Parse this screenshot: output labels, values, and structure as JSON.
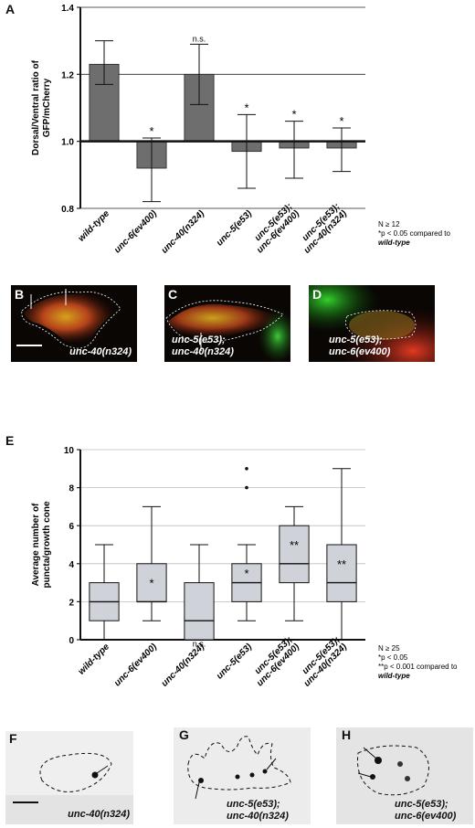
{
  "panels": {
    "a": "A",
    "b": "B",
    "c": "C",
    "d": "D",
    "e": "E",
    "f": "F",
    "g": "G",
    "h": "H"
  },
  "chart_data": [
    {
      "type": "bar",
      "panel": "A",
      "categories": [
        "wild-type",
        "unc-6(ev400)",
        "unc-40(n324)",
        "unc-5(e53)",
        "unc-5(e53);\nunc-6(ev400)",
        "unc-5(e53);\nunc-40(n324)"
      ],
      "values": [
        1.23,
        0.92,
        1.2,
        0.97,
        0.98,
        0.98
      ],
      "err_low": [
        1.17,
        0.82,
        1.11,
        0.86,
        0.89,
        0.91
      ],
      "err_high": [
        1.3,
        1.01,
        1.29,
        1.08,
        1.06,
        1.04
      ],
      "significance": [
        "",
        "*",
        "n.s.",
        "*",
        "*",
        "*"
      ],
      "ylabel": "Dorsal/Ventral ratio of\nGFP/mCherry",
      "xlabel": "",
      "ylim": [
        0.8,
        1.4
      ],
      "yticks": [
        "0.8",
        "1.0",
        "1.2",
        "1.4"
      ],
      "baseline": 1.0,
      "grid": true,
      "bar_color": "#6e6e6e",
      "notes": [
        "N ≥ 12",
        "*p < 0.05 compared to",
        "wild-type"
      ]
    },
    {
      "type": "box",
      "panel": "E",
      "categories": [
        "wild-type",
        "unc-6(ev400)",
        "unc-40(n324)",
        "unc-5(e53)",
        "unc-5(e53);\nunc-6(ev400)",
        "unc-5(e53);\nunc-40(n324)"
      ],
      "boxes": [
        {
          "min": 0,
          "q1": 1,
          "median": 2,
          "q3": 3,
          "max": 5,
          "outliers": []
        },
        {
          "min": 1,
          "q1": 2,
          "median": 2,
          "q3": 4,
          "max": 7,
          "outliers": []
        },
        {
          "min": 0,
          "q1": 0,
          "median": 1,
          "q3": 3,
          "max": 5,
          "outliers": []
        },
        {
          "min": 1,
          "q1": 2,
          "median": 3,
          "q3": 4,
          "max": 5,
          "outliers": [
            8,
            9
          ]
        },
        {
          "min": 1,
          "q1": 3,
          "median": 4,
          "q3": 6,
          "max": 7,
          "outliers": []
        },
        {
          "min": 0,
          "q1": 2,
          "median": 3,
          "q3": 5,
          "max": 9,
          "outliers": []
        }
      ],
      "significance": [
        "",
        "*",
        "n.s.",
        "*",
        "**",
        "**"
      ],
      "ylabel": "Average number of\npuncta/growth cone",
      "xlabel": "",
      "ylim": [
        0,
        10
      ],
      "yticks": [
        "0",
        "2",
        "4",
        "6",
        "8",
        "10"
      ],
      "grid": true,
      "box_color": "#cfd3d9",
      "notes": [
        "N ≥ 25",
        "*p < 0.05",
        "**p < 0.001 compared to",
        "wild-type"
      ]
    }
  ],
  "images": {
    "b": {
      "label": "unc-40(n324)"
    },
    "c": {
      "label": "unc-5(e53);\nunc-40(n324)"
    },
    "d": {
      "label": "unc-5(e53);\nunc-6(ev400)"
    },
    "f": {
      "label": "unc-40(n324)"
    },
    "g": {
      "label": "unc-5(e53);\nunc-40(n324)"
    },
    "h": {
      "label": "unc-5(e53);\nunc-6(ev400)"
    }
  }
}
